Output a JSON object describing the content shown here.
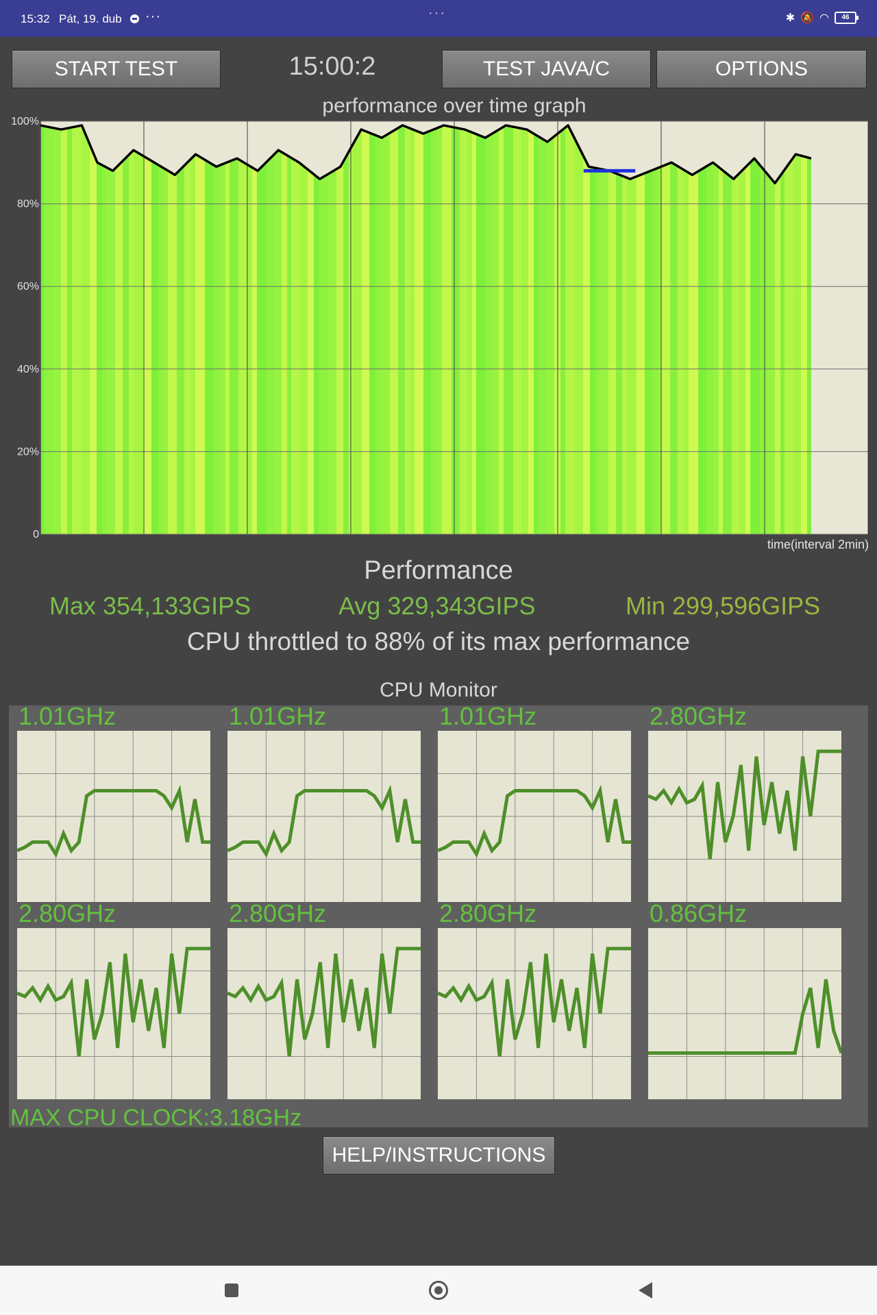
{
  "status_bar": {
    "time": "15:32",
    "date": "Pát, 19. dub",
    "more": "···",
    "handle": "···",
    "battery": "46",
    "icons": [
      "bluetooth-icon",
      "bell-muted-icon",
      "wifi-icon",
      "battery-icon"
    ]
  },
  "toolbar": {
    "start_label": "START TEST",
    "timer": "15:00:2",
    "java_label": "TEST JAVA/C",
    "options_label": "OPTIONS"
  },
  "chart_data": {
    "type": "line",
    "title": "performance over time graph",
    "xlabel": "time(interval 2min)",
    "ylabel": "",
    "yticks": [
      "100%",
      "80%",
      "60%",
      "40%",
      "20%",
      "0"
    ],
    "ylim": [
      0,
      100
    ],
    "x_interval_minutes": 2,
    "xlim_minutes": [
      0,
      16
    ],
    "grid": true,
    "fill": "green-yellow stripes under the line",
    "series": [
      {
        "color": "#000000",
        "x_minutes": [
          0,
          0.4,
          0.8,
          1.1,
          1.4,
          1.8,
          2.2,
          2.6,
          3.0,
          3.4,
          3.8,
          4.2,
          4.6,
          5.0,
          5.4,
          5.8,
          6.2,
          6.6,
          7.0,
          7.4,
          7.8,
          8.2,
          8.6,
          9.0,
          9.4,
          9.8,
          10.2,
          10.6,
          11.0,
          11.4,
          11.8,
          12.2,
          12.6,
          13.0,
          13.4,
          13.8,
          14.2,
          14.6,
          14.9
        ],
        "values_percent": [
          99,
          98,
          99,
          90,
          88,
          93,
          90,
          87,
          92,
          89,
          91,
          88,
          93,
          90,
          86,
          89,
          98,
          96,
          99,
          97,
          99,
          98,
          96,
          99,
          98,
          95,
          99,
          89,
          88,
          86,
          88,
          90,
          87,
          90,
          86,
          91,
          85,
          92,
          91
        ]
      },
      {
        "color": "#2030e0",
        "x_minutes": [
          10.5,
          11.5
        ],
        "values_percent": [
          88,
          88
        ]
      }
    ]
  },
  "performance": {
    "heading": "Performance",
    "max": "Max 354,133GIPS",
    "avg": "Avg 329,343GIPS",
    "min": "Min 299,596GIPS",
    "throttle": "CPU throttled to 88% of its max performance"
  },
  "cpu_monitor": {
    "title": "CPU Monitor",
    "max_clock": "MAX CPU CLOCK:3.18GHz",
    "cores": [
      {
        "freq": "1.01GHz",
        "level": [
          0.3,
          0.32,
          0.35,
          0.35,
          0.35,
          0.28,
          0.4,
          0.3,
          0.35,
          0.62,
          0.65,
          0.65,
          0.65,
          0.65,
          0.65,
          0.65,
          0.65,
          0.65,
          0.65,
          0.62,
          0.55,
          0.65,
          0.35,
          0.6,
          0.35,
          0.35
        ]
      },
      {
        "freq": "1.01GHz",
        "level": [
          0.3,
          0.32,
          0.35,
          0.35,
          0.35,
          0.28,
          0.4,
          0.3,
          0.35,
          0.62,
          0.65,
          0.65,
          0.65,
          0.65,
          0.65,
          0.65,
          0.65,
          0.65,
          0.65,
          0.62,
          0.55,
          0.65,
          0.35,
          0.6,
          0.35,
          0.35
        ]
      },
      {
        "freq": "1.01GHz",
        "level": [
          0.3,
          0.32,
          0.35,
          0.35,
          0.35,
          0.28,
          0.4,
          0.3,
          0.35,
          0.62,
          0.65,
          0.65,
          0.65,
          0.65,
          0.65,
          0.65,
          0.65,
          0.65,
          0.65,
          0.62,
          0.55,
          0.65,
          0.35,
          0.6,
          0.35,
          0.35
        ]
      },
      {
        "freq": "2.80GHz",
        "level": [
          0.62,
          0.6,
          0.65,
          0.58,
          0.66,
          0.58,
          0.6,
          0.68,
          0.25,
          0.7,
          0.35,
          0.5,
          0.8,
          0.3,
          0.85,
          0.45,
          0.7,
          0.4,
          0.65,
          0.3,
          0.85,
          0.5,
          0.88,
          0.88,
          0.88,
          0.88
        ]
      },
      {
        "freq": "2.80GHz",
        "level": [
          0.62,
          0.6,
          0.65,
          0.58,
          0.66,
          0.58,
          0.6,
          0.68,
          0.25,
          0.7,
          0.35,
          0.5,
          0.8,
          0.3,
          0.85,
          0.45,
          0.7,
          0.4,
          0.65,
          0.3,
          0.85,
          0.5,
          0.88,
          0.88,
          0.88,
          0.88
        ]
      },
      {
        "freq": "2.80GHz",
        "level": [
          0.62,
          0.6,
          0.65,
          0.58,
          0.66,
          0.58,
          0.6,
          0.68,
          0.25,
          0.7,
          0.35,
          0.5,
          0.8,
          0.3,
          0.85,
          0.45,
          0.7,
          0.4,
          0.65,
          0.3,
          0.85,
          0.5,
          0.88,
          0.88,
          0.88,
          0.88
        ]
      },
      {
        "freq": "2.80GHz",
        "level": [
          0.62,
          0.6,
          0.65,
          0.58,
          0.66,
          0.58,
          0.6,
          0.68,
          0.25,
          0.7,
          0.35,
          0.5,
          0.8,
          0.3,
          0.85,
          0.45,
          0.7,
          0.4,
          0.65,
          0.3,
          0.85,
          0.5,
          0.88,
          0.88,
          0.88,
          0.88
        ]
      },
      {
        "freq": "0.86GHz",
        "level": [
          0.27,
          0.27,
          0.27,
          0.27,
          0.27,
          0.27,
          0.27,
          0.27,
          0.27,
          0.27,
          0.27,
          0.27,
          0.27,
          0.27,
          0.27,
          0.27,
          0.27,
          0.27,
          0.27,
          0.27,
          0.5,
          0.65,
          0.3,
          0.7,
          0.4,
          0.27
        ]
      }
    ]
  },
  "help_label": "HELP/INSTRUCTIONS",
  "navbar": {
    "icons": [
      "recents-icon",
      "home-icon",
      "back-icon"
    ]
  }
}
